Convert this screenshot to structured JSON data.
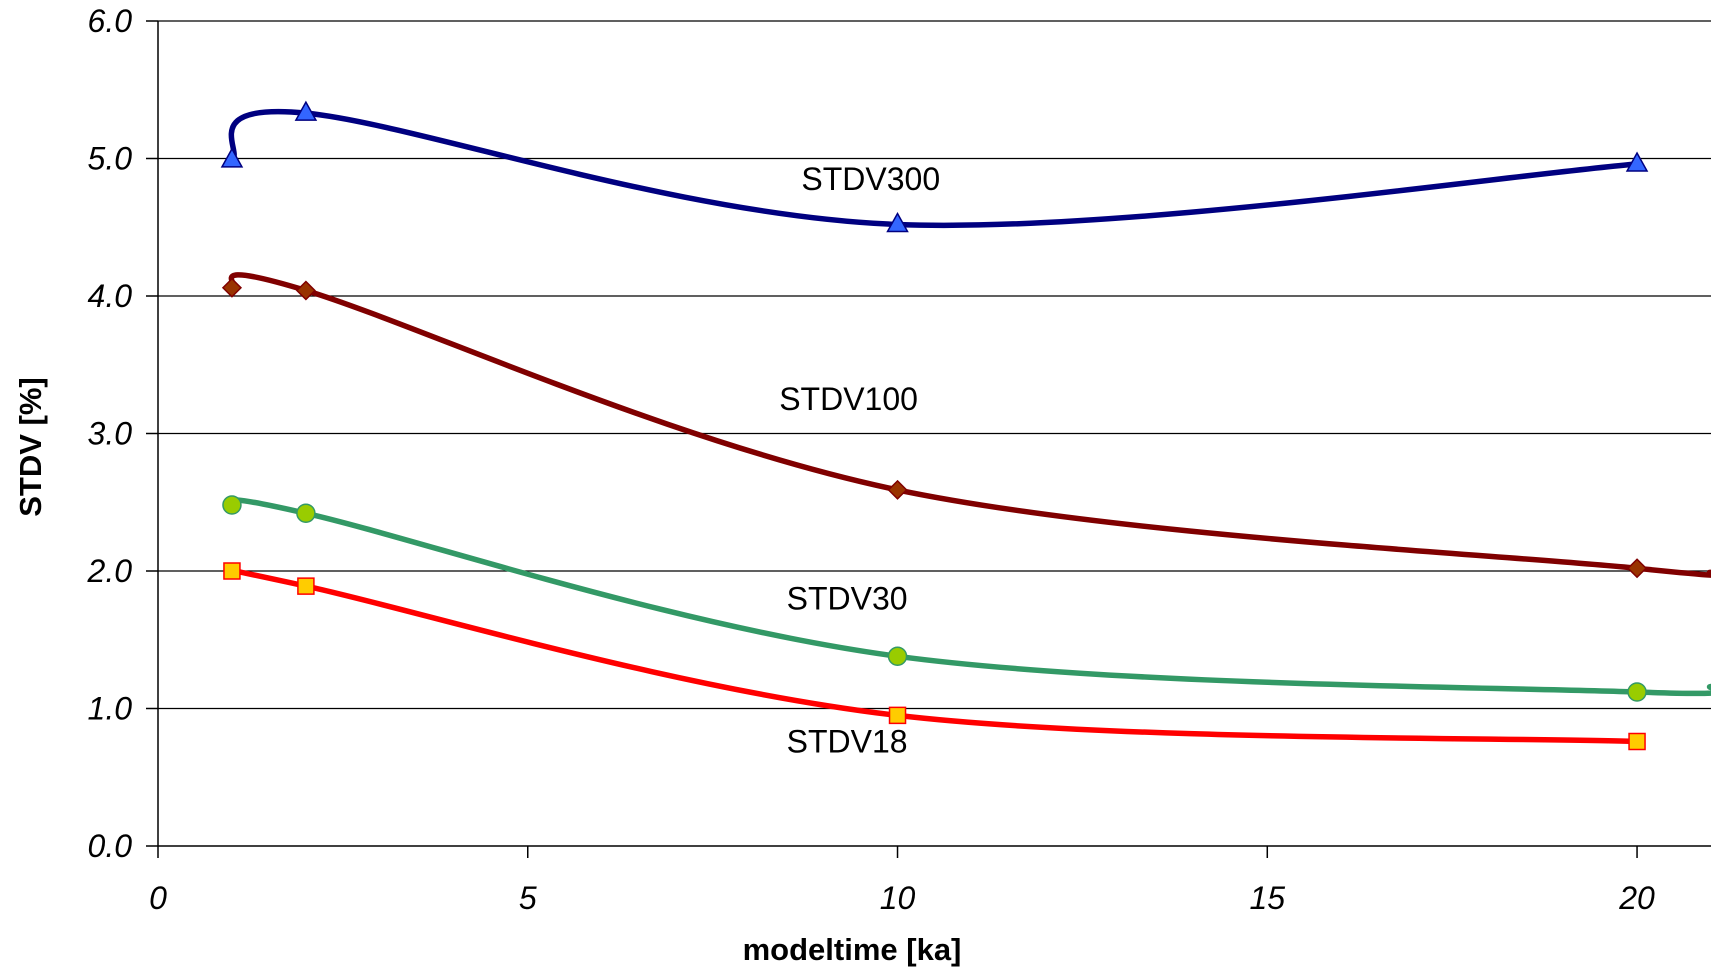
{
  "chart_data": {
    "type": "line",
    "title": "",
    "xlabel": "modeltime [ka]",
    "ylabel": "STDV [%]",
    "xlim": [
      0,
      21
    ],
    "ylim": [
      0.0,
      6.0
    ],
    "x_ticks": [
      0,
      5,
      10,
      15,
      20
    ],
    "x_tick_labels": [
      "0",
      "5",
      "10",
      "15",
      "20"
    ],
    "y_ticks": [
      0.0,
      1.0,
      2.0,
      3.0,
      4.0,
      5.0,
      6.0
    ],
    "y_tick_labels": [
      "0.0",
      "1.0",
      "2.0",
      "3.0",
      "4.0",
      "5.0",
      "6.0"
    ],
    "grid": "horizontal",
    "legend": "inline labels",
    "smooth": true,
    "series": [
      {
        "name": "STDV300",
        "color": "#000080",
        "marker": "triangle",
        "marker_color": "#3366ff",
        "x": [
          1,
          2,
          10,
          20
        ],
        "y": [
          4.99,
          5.33,
          4.52,
          4.96
        ],
        "label_anchor": [
          8.7,
          4.77
        ]
      },
      {
        "name": "STDV100",
        "color": "#800000",
        "marker": "diamond",
        "marker_color": "#993300",
        "x": [
          1,
          2,
          10,
          20,
          21
        ],
        "y": [
          4.06,
          4.04,
          2.59,
          2.02,
          1.99
        ],
        "marker_count": 4,
        "label_anchor": [
          8.4,
          3.17
        ]
      },
      {
        "name": "STDV30",
        "color": "#339966",
        "marker": "circle",
        "marker_color": "#99cc00",
        "x": [
          1,
          2,
          10,
          20,
          21
        ],
        "y": [
          2.48,
          2.42,
          1.38,
          1.12,
          1.16
        ],
        "marker_count": 4,
        "label_anchor": [
          8.5,
          1.72
        ]
      },
      {
        "name": "STDV18",
        "color": "#ff0000",
        "marker": "square",
        "marker_color": "#ffcc00",
        "x": [
          1,
          2,
          10,
          20
        ],
        "y": [
          2.0,
          1.89,
          0.95,
          0.76
        ],
        "label_anchor": [
          8.5,
          0.68
        ]
      }
    ]
  }
}
